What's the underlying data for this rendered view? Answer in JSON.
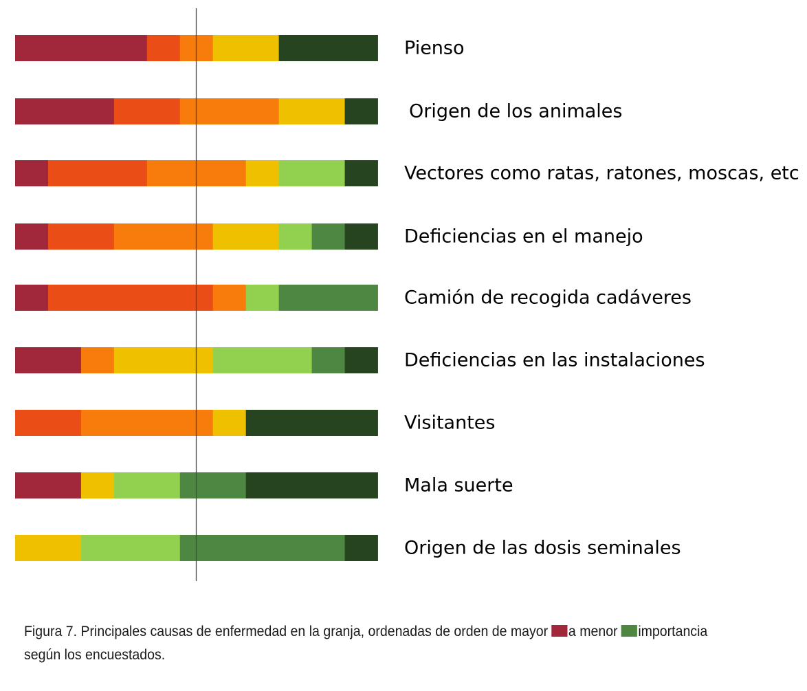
{
  "chart_data": {
    "type": "bar",
    "stacked": true,
    "orientation": "horizontal",
    "value_unit": "rank-position share (%)",
    "ranks": [
      1,
      2,
      3,
      4,
      5,
      6,
      7
    ],
    "colors": [
      "#a0283a",
      "#ea4e16",
      "#f77c0c",
      "#efc000",
      "#92d050",
      "#4d8742",
      "#264420"
    ],
    "reference_line_value": 50,
    "categories": [
      "Pienso",
      "Origen de los animales",
      "Vectores como ratas, ratones, moscas, etc",
      "Deficiencias en el manejo",
      "Camión de recogida cadáveres",
      "Deficiencias en las instalaciones",
      "Visitantes",
      "Mala suerte",
      "Origen de las dosis seminales"
    ],
    "rows": [
      [
        36.4,
        9.1,
        9.1,
        18.2,
        0,
        0,
        27.3
      ],
      [
        27.3,
        18.2,
        27.3,
        18.2,
        0,
        0,
        9.1
      ],
      [
        9.1,
        27.3,
        27.3,
        9.1,
        18.2,
        0,
        9.1
      ],
      [
        9.1,
        18.2,
        27.3,
        18.2,
        9.1,
        9.1,
        9.1
      ],
      [
        9.1,
        45.5,
        9.1,
        0,
        9.1,
        27.3,
        0
      ],
      [
        18.2,
        0,
        9.1,
        27.3,
        27.3,
        9.1,
        9.1
      ],
      [
        0,
        18.2,
        36.4,
        9.1,
        0,
        0,
        36.4
      ],
      [
        18.2,
        0,
        0,
        9.1,
        18.2,
        18.2,
        36.4
      ],
      [
        0,
        0,
        0,
        18.2,
        27.3,
        45.5,
        9.1
      ]
    ]
  },
  "caption": {
    "before": "Figura 7. Principales causas de enfermedad en la granja, ordenadas de orden de mayor",
    "middle": "a menor",
    "after": "importancia",
    "line2": "según los encuestados.",
    "swatch_high_color": "#a0283a",
    "swatch_low_color": "#4d8742"
  }
}
